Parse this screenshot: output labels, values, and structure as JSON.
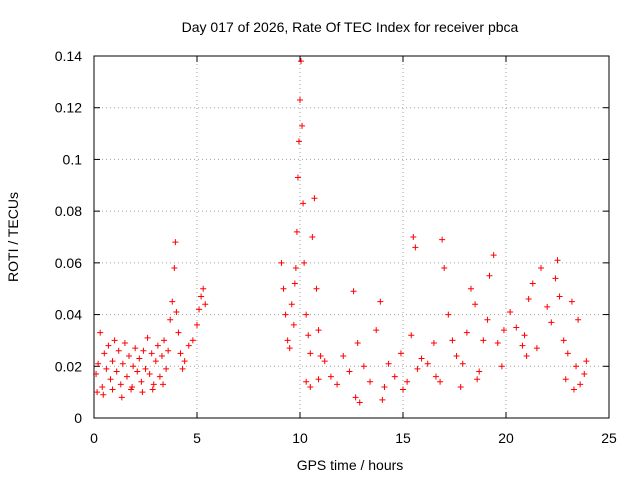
{
  "chart_data": {
    "type": "scatter",
    "title": "Day 017 of 2026, Rate Of TEC Index for receiver pbca",
    "xlabel": "GPS time / hours",
    "ylabel": "ROTI / TECUs",
    "xlim": [
      0,
      25
    ],
    "ylim": [
      0,
      0.14
    ],
    "xticks": [
      0,
      5,
      10,
      15,
      20,
      25
    ],
    "xtick_labels": [
      "0",
      "5",
      "10",
      "15",
      "20",
      "25"
    ],
    "yticks": [
      0,
      0.02,
      0.04,
      0.06,
      0.08,
      0.1,
      0.12,
      0.14
    ],
    "ytick_labels": [
      "0",
      "0.02",
      "0.04",
      "0.06",
      "0.08",
      "0.1",
      "0.12",
      "0.14"
    ],
    "grid": true,
    "marker": "+",
    "color": "#ff0000",
    "series": [
      {
        "name": "ROTI",
        "points": [
          [
            0.1,
            0.017
          ],
          [
            0.2,
            0.021
          ],
          [
            0.3,
            0.033
          ],
          [
            0.4,
            0.012
          ],
          [
            0.5,
            0.025
          ],
          [
            0.6,
            0.019
          ],
          [
            0.7,
            0.028
          ],
          [
            0.8,
            0.015
          ],
          [
            0.9,
            0.022
          ],
          [
            1.0,
            0.03
          ],
          [
            1.1,
            0.018
          ],
          [
            1.2,
            0.026
          ],
          [
            1.3,
            0.013
          ],
          [
            1.4,
            0.021
          ],
          [
            1.5,
            0.029
          ],
          [
            1.6,
            0.016
          ],
          [
            1.7,
            0.024
          ],
          [
            1.8,
            0.011
          ],
          [
            1.9,
            0.02
          ],
          [
            2.0,
            0.027
          ],
          [
            2.1,
            0.018
          ],
          [
            2.2,
            0.023
          ],
          [
            2.3,
            0.014
          ],
          [
            2.4,
            0.026
          ],
          [
            2.5,
            0.019
          ],
          [
            2.6,
            0.031
          ],
          [
            2.7,
            0.017
          ],
          [
            2.8,
            0.025
          ],
          [
            2.9,
            0.013
          ],
          [
            3.0,
            0.022
          ],
          [
            3.1,
            0.028
          ],
          [
            3.2,
            0.016
          ],
          [
            3.3,
            0.024
          ],
          [
            3.4,
            0.03
          ],
          [
            3.5,
            0.019
          ],
          [
            3.6,
            0.026
          ],
          [
            3.7,
            0.038
          ],
          [
            3.8,
            0.045
          ],
          [
            3.9,
            0.058
          ],
          [
            3.95,
            0.068
          ],
          [
            4.0,
            0.041
          ],
          [
            4.1,
            0.033
          ],
          [
            4.2,
            0.025
          ],
          [
            4.3,
            0.019
          ],
          [
            4.4,
            0.022
          ],
          [
            4.6,
            0.028
          ],
          [
            4.8,
            0.03
          ],
          [
            5.0,
            0.036
          ],
          [
            5.1,
            0.042
          ],
          [
            5.2,
            0.047
          ],
          [
            5.3,
            0.05
          ],
          [
            5.4,
            0.044
          ],
          [
            0.15,
            0.01
          ],
          [
            0.45,
            0.009
          ],
          [
            0.9,
            0.011
          ],
          [
            1.35,
            0.008
          ],
          [
            1.85,
            0.012
          ],
          [
            2.35,
            0.01
          ],
          [
            2.85,
            0.011
          ],
          [
            3.35,
            0.013
          ],
          [
            9.1,
            0.06
          ],
          [
            9.2,
            0.05
          ],
          [
            9.3,
            0.04
          ],
          [
            9.4,
            0.03
          ],
          [
            9.5,
            0.027
          ],
          [
            9.6,
            0.044
          ],
          [
            9.7,
            0.036
          ],
          [
            9.75,
            0.052
          ],
          [
            9.8,
            0.058
          ],
          [
            9.85,
            0.072
          ],
          [
            9.9,
            0.093
          ],
          [
            9.95,
            0.107
          ],
          [
            10.0,
            0.123
          ],
          [
            10.05,
            0.138
          ],
          [
            10.1,
            0.113
          ],
          [
            10.15,
            0.083
          ],
          [
            10.2,
            0.06
          ],
          [
            10.3,
            0.04
          ],
          [
            10.4,
            0.032
          ],
          [
            10.5,
            0.025
          ],
          [
            10.6,
            0.07
          ],
          [
            10.7,
            0.085
          ],
          [
            10.8,
            0.05
          ],
          [
            10.9,
            0.034
          ],
          [
            11.0,
            0.024
          ],
          [
            10.3,
            0.014
          ],
          [
            10.5,
            0.012
          ],
          [
            10.9,
            0.015
          ],
          [
            11.2,
            0.022
          ],
          [
            11.5,
            0.016
          ],
          [
            11.8,
            0.013
          ],
          [
            12.1,
            0.024
          ],
          [
            12.4,
            0.018
          ],
          [
            12.6,
            0.049
          ],
          [
            12.7,
            0.008
          ],
          [
            12.8,
            0.029
          ],
          [
            13.1,
            0.02
          ],
          [
            13.4,
            0.014
          ],
          [
            13.7,
            0.034
          ],
          [
            13.9,
            0.045
          ],
          [
            14.1,
            0.012
          ],
          [
            14.3,
            0.021
          ],
          [
            14.6,
            0.016
          ],
          [
            14.9,
            0.025
          ],
          [
            15.2,
            0.014
          ],
          [
            15.4,
            0.032
          ],
          [
            15.5,
            0.07
          ],
          [
            15.6,
            0.066
          ],
          [
            15.7,
            0.019
          ],
          [
            15.9,
            0.023
          ],
          [
            16.2,
            0.021
          ],
          [
            16.5,
            0.029
          ],
          [
            16.8,
            0.014
          ],
          [
            16.9,
            0.069
          ],
          [
            17.0,
            0.058
          ],
          [
            17.2,
            0.04
          ],
          [
            17.4,
            0.03
          ],
          [
            17.6,
            0.024
          ],
          [
            17.9,
            0.021
          ],
          [
            18.1,
            0.033
          ],
          [
            18.3,
            0.05
          ],
          [
            18.5,
            0.044
          ],
          [
            18.7,
            0.018
          ],
          [
            18.9,
            0.03
          ],
          [
            19.1,
            0.038
          ],
          [
            19.2,
            0.055
          ],
          [
            19.4,
            0.063
          ],
          [
            19.6,
            0.029
          ],
          [
            19.9,
            0.034
          ],
          [
            20.2,
            0.041
          ],
          [
            20.5,
            0.035
          ],
          [
            20.8,
            0.028
          ],
          [
            21.1,
            0.046
          ],
          [
            21.3,
            0.052
          ],
          [
            21.5,
            0.027
          ],
          [
            21.7,
            0.058
          ],
          [
            22.0,
            0.043
          ],
          [
            22.2,
            0.037
          ],
          [
            22.5,
            0.061
          ],
          [
            22.6,
            0.047
          ],
          [
            22.8,
            0.03
          ],
          [
            23.0,
            0.025
          ],
          [
            23.2,
            0.045
          ],
          [
            23.4,
            0.02
          ],
          [
            23.6,
            0.013
          ],
          [
            23.8,
            0.017
          ],
          [
            23.9,
            0.022
          ],
          [
            17.8,
            0.012
          ],
          [
            18.6,
            0.015
          ],
          [
            21.0,
            0.024
          ],
          [
            22.9,
            0.015
          ],
          [
            23.3,
            0.011
          ],
          [
            16.6,
            0.016
          ],
          [
            12.9,
            0.006
          ],
          [
            14.0,
            0.007
          ],
          [
            15.0,
            0.011
          ],
          [
            19.8,
            0.02
          ],
          [
            20.9,
            0.032
          ],
          [
            22.4,
            0.054
          ],
          [
            23.5,
            0.038
          ]
        ]
      }
    ]
  }
}
